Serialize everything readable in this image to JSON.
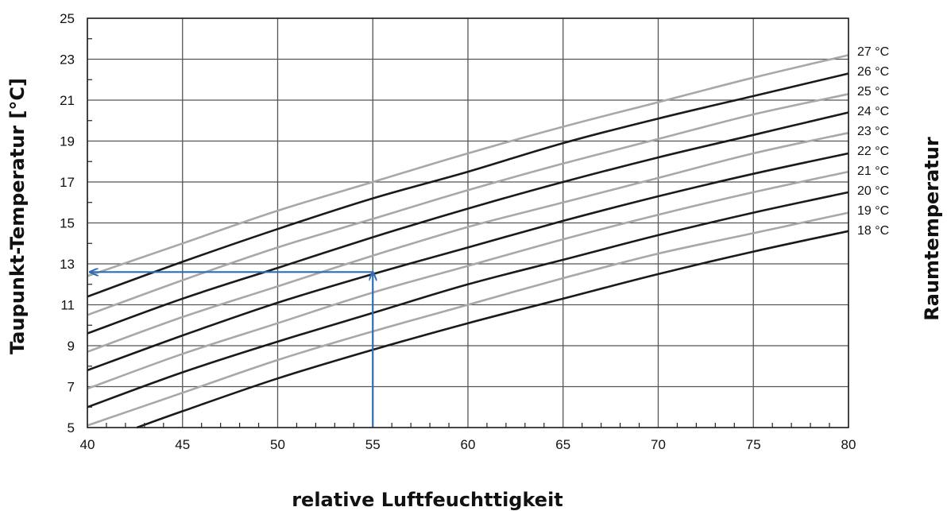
{
  "chart_data": {
    "type": "line",
    "xlabel": "relative Luftfeuchttigkeit",
    "ylabel": "Taupunkt-Temperatur [°C]",
    "right_label": "Raumtemperatur",
    "xlim": [
      40,
      80
    ],
    "ylim": [
      5,
      25
    ],
    "x_ticks": [
      40,
      45,
      50,
      55,
      60,
      65,
      70,
      75,
      80
    ],
    "y_ticks": [
      5,
      7,
      9,
      11,
      13,
      15,
      17,
      19,
      21,
      23,
      25
    ],
    "grid": true,
    "series": [
      {
        "name": "27 °C",
        "color": "#a8a8a8",
        "x": [
          40,
          45,
          50,
          55,
          60,
          65,
          70,
          75,
          80
        ],
        "y": [
          12.4,
          14.0,
          15.6,
          17.0,
          18.4,
          19.7,
          20.9,
          22.1,
          23.2
        ]
      },
      {
        "name": "26 °C",
        "color": "#1a1a1a",
        "x": [
          40,
          45,
          50,
          55,
          60,
          65,
          70,
          75,
          80
        ],
        "y": [
          11.4,
          13.1,
          14.7,
          16.2,
          17.5,
          18.9,
          20.1,
          21.2,
          22.3
        ]
      },
      {
        "name": "25 °C",
        "color": "#a8a8a8",
        "x": [
          40,
          45,
          50,
          55,
          60,
          65,
          70,
          75,
          80
        ],
        "y": [
          10.5,
          12.2,
          13.8,
          15.2,
          16.6,
          17.9,
          19.1,
          20.3,
          21.3
        ]
      },
      {
        "name": "24 °C",
        "color": "#1a1a1a",
        "x": [
          40,
          45,
          50,
          55,
          60,
          65,
          70,
          75,
          80
        ],
        "y": [
          9.6,
          11.3,
          12.8,
          14.3,
          15.7,
          17.0,
          18.2,
          19.3,
          20.4
        ]
      },
      {
        "name": "23 °C",
        "color": "#a8a8a8",
        "x": [
          40,
          45,
          50,
          55,
          60,
          65,
          70,
          75,
          80
        ],
        "y": [
          8.7,
          10.4,
          11.9,
          13.4,
          14.8,
          16.0,
          17.2,
          18.4,
          19.4
        ]
      },
      {
        "name": "22 °C",
        "color": "#1a1a1a",
        "x": [
          40,
          45,
          50,
          55,
          60,
          65,
          70,
          75,
          80
        ],
        "y": [
          7.8,
          9.5,
          11.1,
          12.5,
          13.8,
          15.1,
          16.3,
          17.4,
          18.4
        ]
      },
      {
        "name": "21 °C",
        "color": "#a8a8a8",
        "x": [
          40,
          45,
          50,
          55,
          60,
          65,
          70,
          75,
          80
        ],
        "y": [
          6.9,
          8.6,
          10.1,
          11.6,
          12.9,
          14.2,
          15.4,
          16.5,
          17.5
        ]
      },
      {
        "name": "20 °C",
        "color": "#1a1a1a",
        "x": [
          40,
          45,
          50,
          55,
          60,
          65,
          70,
          75,
          80
        ],
        "y": [
          6.0,
          7.7,
          9.2,
          10.6,
          12.0,
          13.2,
          14.4,
          15.5,
          16.5
        ]
      },
      {
        "name": "19 °C",
        "color": "#a8a8a8",
        "x": [
          40,
          45,
          50,
          55,
          60,
          65,
          70,
          75,
          80
        ],
        "y": [
          5.1,
          6.7,
          8.3,
          9.7,
          11.0,
          12.3,
          13.5,
          14.5,
          15.5
        ]
      },
      {
        "name": "18 °C",
        "color": "#1a1a1a",
        "x": [
          42.6,
          45,
          50,
          55,
          60,
          65,
          70,
          75,
          80
        ],
        "y": [
          5.0,
          5.8,
          7.4,
          8.8,
          10.1,
          11.3,
          12.5,
          13.6,
          14.6
        ]
      }
    ],
    "annotation": {
      "color": "#2e6db4",
      "x": 55,
      "y": 12.6,
      "description_path": [
        [
          55,
          5
        ],
        [
          55,
          12.6
        ],
        [
          40,
          12.6
        ]
      ]
    }
  }
}
